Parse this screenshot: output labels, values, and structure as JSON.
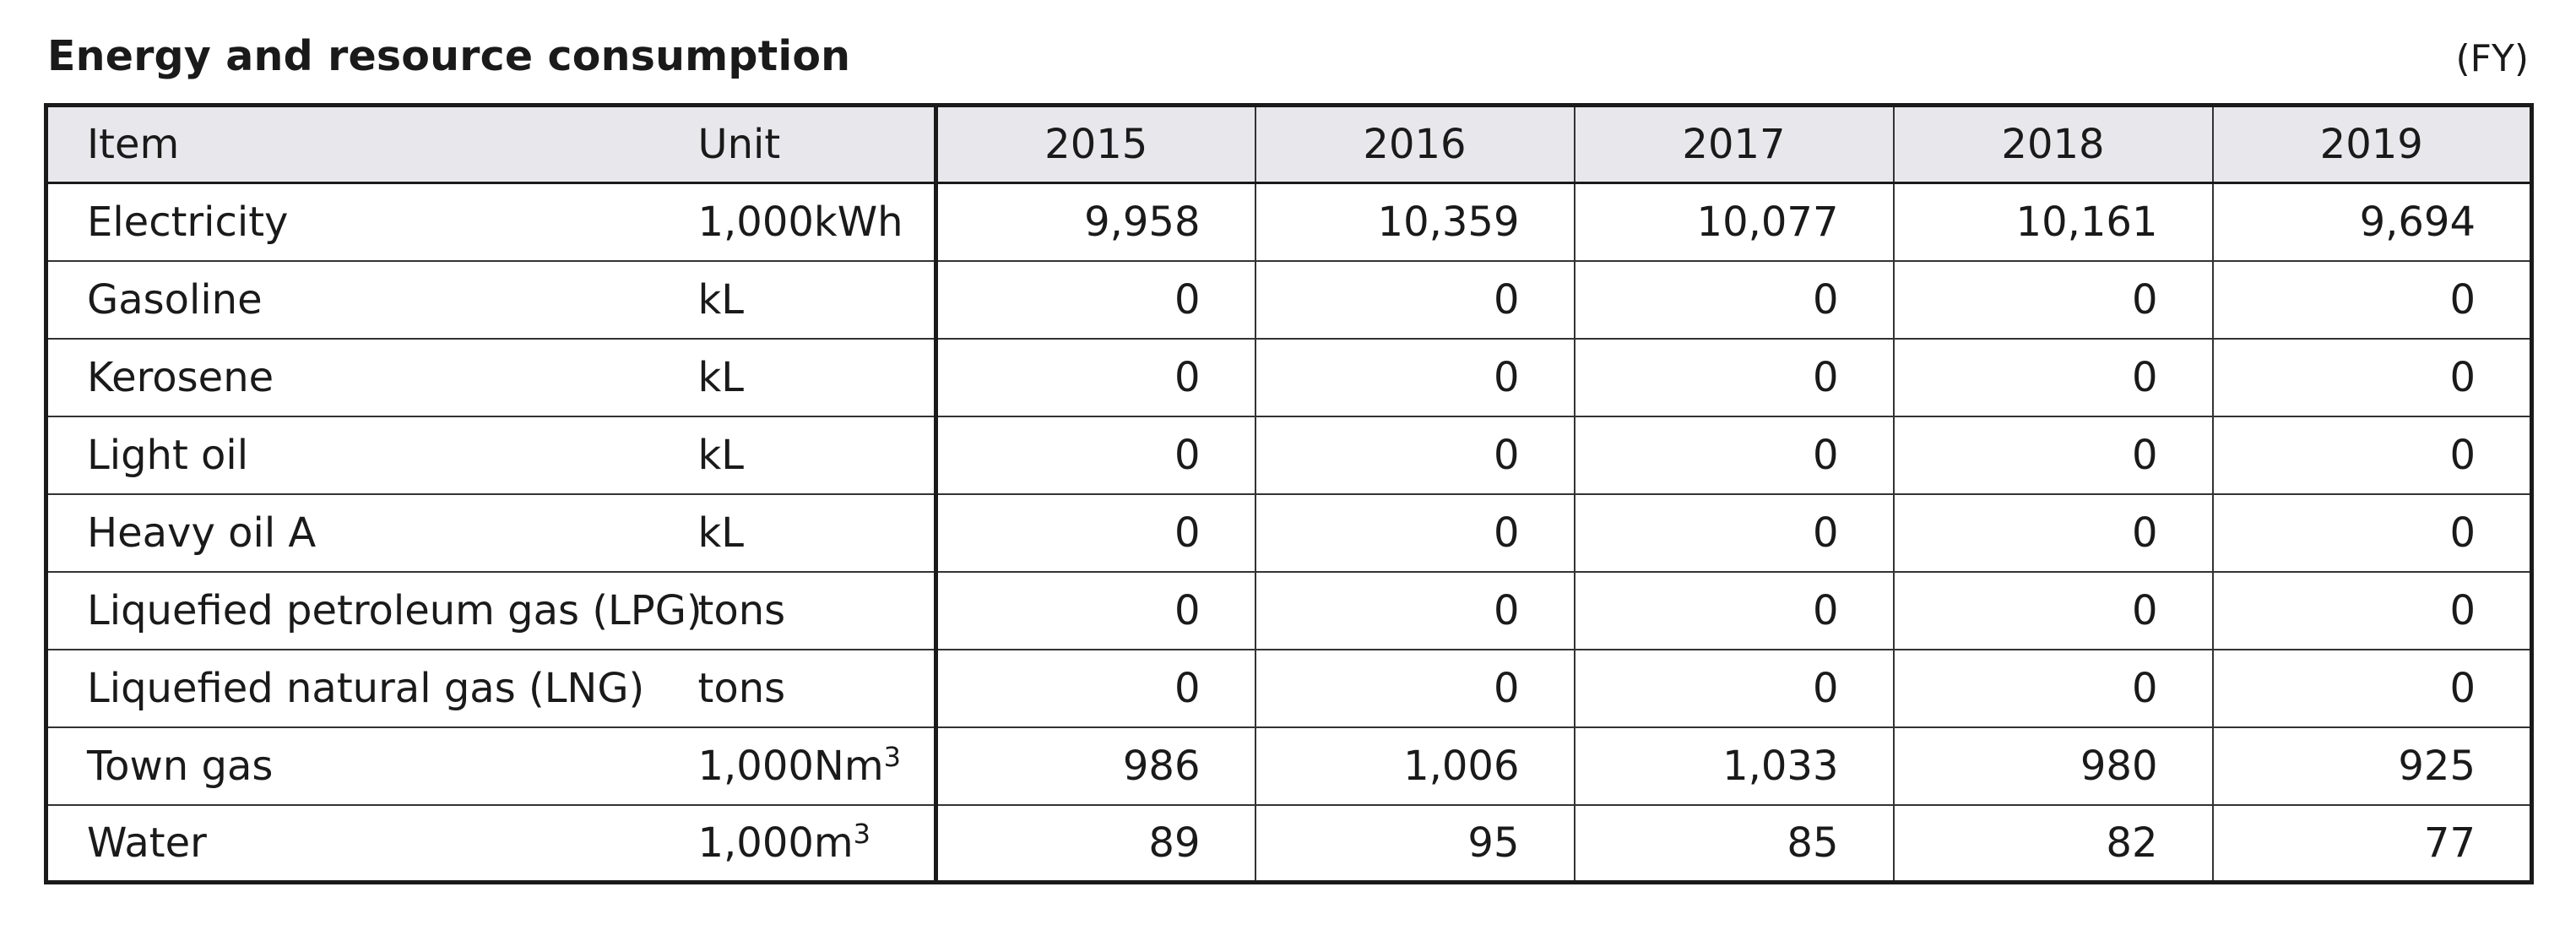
{
  "title": "Energy and resource consumption",
  "period_note": "(FY)",
  "headers": {
    "item": "Item",
    "unit": "Unit",
    "years": [
      "2015",
      "2016",
      "2017",
      "2018",
      "2019"
    ]
  },
  "rows": [
    {
      "item": "Electricity",
      "unit": "1,000kWh",
      "unit_sup": "",
      "values": [
        "9,958",
        "10,359",
        "10,077",
        "10,161",
        "9,694"
      ]
    },
    {
      "item": "Gasoline",
      "unit": "kL",
      "unit_sup": "",
      "values": [
        "0",
        "0",
        "0",
        "0",
        "0"
      ]
    },
    {
      "item": "Kerosene",
      "unit": "kL",
      "unit_sup": "",
      "values": [
        "0",
        "0",
        "0",
        "0",
        "0"
      ]
    },
    {
      "item": "Light oil",
      "unit": "kL",
      "unit_sup": "",
      "values": [
        "0",
        "0",
        "0",
        "0",
        "0"
      ]
    },
    {
      "item": "Heavy oil A",
      "unit": "kL",
      "unit_sup": "",
      "values": [
        "0",
        "0",
        "0",
        "0",
        "0"
      ]
    },
    {
      "item": "Liquefied petroleum gas (LPG)",
      "unit": "tons",
      "unit_sup": "",
      "values": [
        "0",
        "0",
        "0",
        "0",
        "0"
      ]
    },
    {
      "item": "Liquefied natural gas (LNG)",
      "unit": "tons",
      "unit_sup": "",
      "values": [
        "0",
        "0",
        "0",
        "0",
        "0"
      ]
    },
    {
      "item": "Town gas",
      "unit": "1,000Nm",
      "unit_sup": "3",
      "values": [
        "986",
        "1,006",
        "1,033",
        "980",
        "925"
      ]
    },
    {
      "item": "Water",
      "unit": "1,000m",
      "unit_sup": "3",
      "values": [
        "89",
        "95",
        "85",
        "82",
        "77"
      ]
    }
  ]
}
